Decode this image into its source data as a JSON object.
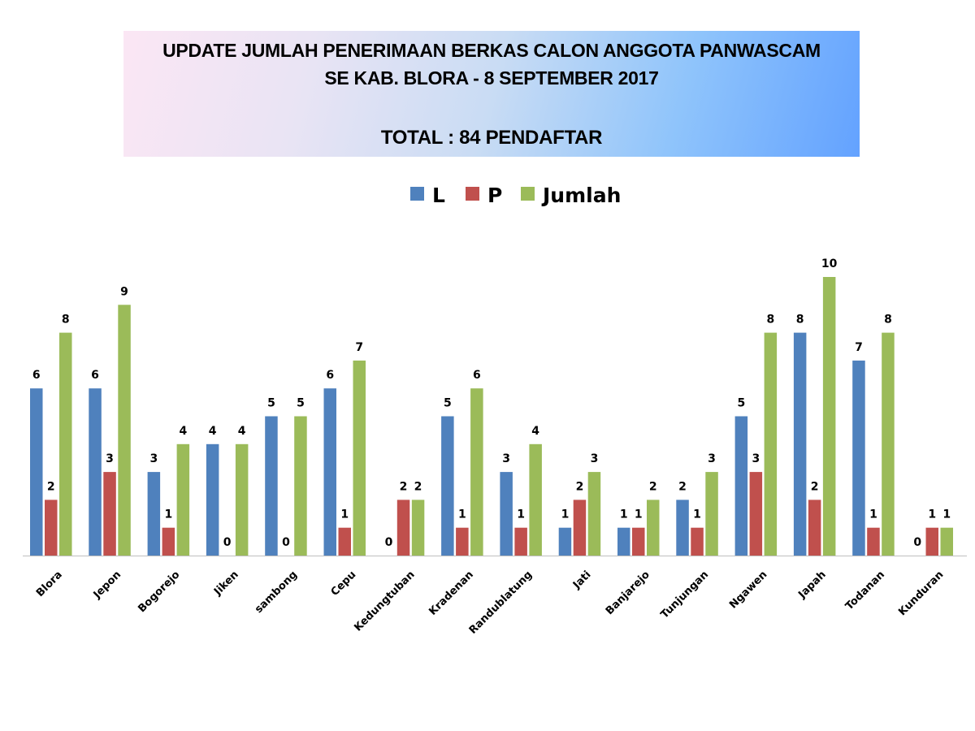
{
  "header": {
    "line1": "UPDATE JUMLAH PENERIMAAN BERKAS CALON ANGGOTA PANWASCAM",
    "line2": "SE KAB. BLORA - 8 SEPTEMBER 2017",
    "total": "TOTAL : 84 PENDAFTAR"
  },
  "chart_data": {
    "type": "bar",
    "title": "",
    "xlabel": "",
    "ylabel": "",
    "ylim": [
      0,
      10
    ],
    "grid": false,
    "legend_position": "top-center",
    "categories": [
      "Blora",
      "Jepon",
      "Bogorejo",
      "Jiken",
      "sambong",
      "Cepu",
      "Kedungtuban",
      "Kradenan",
      "Randublatung",
      "Jati",
      "Banjarejo",
      "Tunjungan",
      "Ngawen",
      "Japah",
      "Todanan",
      "Kunduran"
    ],
    "series": [
      {
        "name": "L",
        "color": "#4f81bd",
        "values": [
          6,
          6,
          3,
          4,
          5,
          6,
          0,
          5,
          3,
          1,
          1,
          2,
          5,
          8,
          7,
          0
        ]
      },
      {
        "name": "P",
        "color": "#c0504d",
        "values": [
          2,
          3,
          1,
          0,
          0,
          1,
          2,
          1,
          1,
          2,
          1,
          1,
          3,
          2,
          1,
          1
        ]
      },
      {
        "name": "Jumlah",
        "color": "#9bbb59",
        "values": [
          8,
          9,
          4,
          4,
          5,
          7,
          2,
          6,
          4,
          3,
          2,
          3,
          8,
          10,
          8,
          1
        ]
      }
    ]
  }
}
